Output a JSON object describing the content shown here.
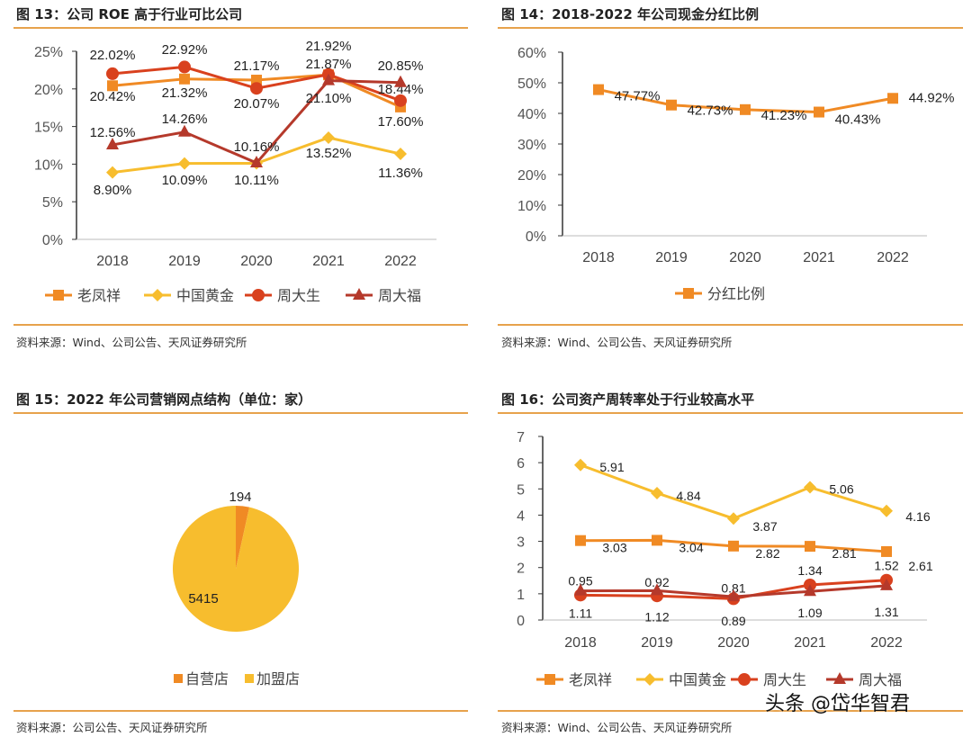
{
  "colors": {
    "laofengxiang": "#f08a24",
    "zhongguohuangjin": "#f7bd2e",
    "zhoudasheng": "#d9411e",
    "zhoudafu": "#b5392b",
    "rule": "#e7a24c"
  },
  "panels": [
    {
      "title": "图 13：公司 ROE 高于行业可比公司",
      "source": "资料来源：Wind、公司公告、天风证券研究所"
    },
    {
      "title": "图 14：2018-2022 年公司现金分红比例",
      "source": "资料来源：Wind、公司公告、天风证券研究所"
    },
    {
      "title": "图 15：2022 年公司营销网点结构（单位：家）",
      "source": "资料来源：公司公告、天风证券研究所"
    },
    {
      "title": "图 16：公司资产周转率处于行业较高水平",
      "source": "资料来源：Wind、公司公告、天风证券研究所"
    }
  ],
  "watermark": "头条 @岱华智君",
  "chart_data": [
    {
      "type": "line",
      "categories": [
        "2018",
        "2019",
        "2020",
        "2021",
        "2022"
      ],
      "ylim": [
        0,
        25
      ],
      "yticks": [
        "0%",
        "5%",
        "10%",
        "15%",
        "20%",
        "25%"
      ],
      "legend": "bottom",
      "series": [
        {
          "name": "老凤祥",
          "marker": "square",
          "values": [
            20.42,
            21.32,
            21.17,
            21.87,
            17.6
          ],
          "labels": [
            "20.42%",
            "21.32%",
            "21.17%",
            "21.87%",
            "17.60%"
          ]
        },
        {
          "name": "中国黄金",
          "marker": "diamond",
          "values": [
            8.9,
            10.09,
            10.11,
            13.52,
            11.36
          ],
          "labels": [
            "8.90%",
            "10.09%",
            "10.11%",
            "13.52%",
            "11.36%"
          ]
        },
        {
          "name": "周大生",
          "marker": "circle",
          "values": [
            22.02,
            22.92,
            20.07,
            21.92,
            18.44
          ],
          "labels": [
            "22.02%",
            "22.92%",
            "20.07%",
            "21.92%",
            "18.44%"
          ]
        },
        {
          "name": "周大福",
          "marker": "triangle",
          "values": [
            12.56,
            14.26,
            10.16,
            21.1,
            20.85
          ],
          "labels": [
            "12.56%",
            "14.26%",
            "10.16%",
            "21.10%",
            "20.85%"
          ]
        }
      ]
    },
    {
      "type": "line",
      "categories": [
        "2018",
        "2019",
        "2020",
        "2021",
        "2022"
      ],
      "ylim": [
        0,
        60
      ],
      "yticks": [
        "0%",
        "10%",
        "20%",
        "30%",
        "40%",
        "50%",
        "60%"
      ],
      "legend": "bottom",
      "series": [
        {
          "name": "分红比例",
          "marker": "square",
          "values": [
            47.77,
            42.73,
            41.23,
            40.43,
            44.92
          ],
          "labels": [
            "47.77%",
            "42.73%",
            "41.23%",
            "40.43%",
            "44.92%"
          ]
        }
      ]
    },
    {
      "type": "pie",
      "legend": "bottom",
      "slices": [
        {
          "name": "自营店",
          "value": 194,
          "label": "194",
          "color": "#f08a24"
        },
        {
          "name": "加盟店",
          "value": 5415,
          "label": "5415",
          "color": "#f7bd2e"
        }
      ]
    },
    {
      "type": "line",
      "categories": [
        "2018",
        "2019",
        "2020",
        "2021",
        "2022"
      ],
      "ylim": [
        0,
        7
      ],
      "yticks": [
        "0",
        "1",
        "2",
        "3",
        "4",
        "5",
        "6",
        "7"
      ],
      "legend": "bottom",
      "series": [
        {
          "name": "老凤祥",
          "marker": "square",
          "values": [
            3.03,
            3.04,
            2.82,
            2.81,
            2.61
          ],
          "labels": [
            "3.03",
            "3.04",
            "2.82",
            "2.81",
            "2.61"
          ]
        },
        {
          "name": "中国黄金",
          "marker": "diamond",
          "values": [
            5.91,
            4.84,
            3.87,
            5.06,
            4.16
          ],
          "labels": [
            "5.91",
            "4.84",
            "3.87",
            "5.06",
            "4.16"
          ]
        },
        {
          "name": "周大生",
          "marker": "circle",
          "values": [
            0.95,
            0.92,
            0.81,
            1.34,
            1.52
          ],
          "labels": [
            "0.95",
            "0.92",
            "0.81",
            "1.34",
            "1.52"
          ]
        },
        {
          "name": "周大福",
          "marker": "triangle",
          "values": [
            1.11,
            1.12,
            0.89,
            1.09,
            1.31
          ],
          "labels": [
            "1.11",
            "1.12",
            "0.89",
            "1.09",
            "1.31"
          ]
        }
      ]
    }
  ]
}
